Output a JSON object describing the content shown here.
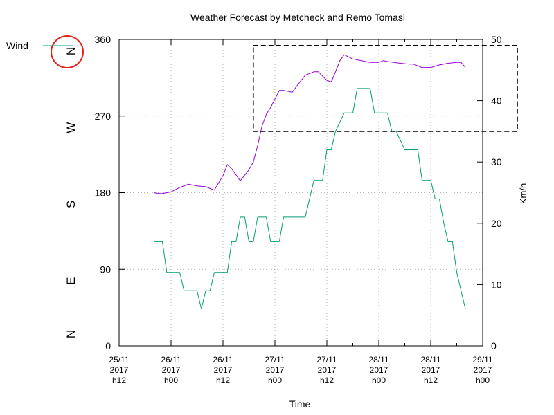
{
  "chart_data": {
    "type": "line",
    "title": "Weather Forecast by Metcheck and Remo Tomasi",
    "xlabel": "Time",
    "ylabel": "",
    "y2label": "Km/h",
    "ylim": [
      0,
      360
    ],
    "y2lim": [
      0,
      50
    ],
    "grid": true,
    "legend": {
      "label": "Wind",
      "position": "top-left"
    },
    "compass_labels": [
      {
        "label": "N",
        "deg": 0
      },
      {
        "label": "E",
        "deg": 90
      },
      {
        "label": "S",
        "deg": 180
      },
      {
        "label": "W",
        "deg": 270
      },
      {
        "label": "N",
        "deg": 360,
        "highlighted": true
      }
    ],
    "y_ticks": [
      0,
      90,
      180,
      270,
      360
    ],
    "y2_ticks": [
      0,
      10,
      20,
      30,
      40,
      50
    ],
    "x_domain": [
      0,
      84
    ],
    "x_ticks": [
      {
        "t": 0,
        "lines": [
          "25/11",
          "2017",
          "h12"
        ]
      },
      {
        "t": 12,
        "lines": [
          "26/11",
          "2017",
          "h00"
        ]
      },
      {
        "t": 24,
        "lines": [
          "26/11",
          "2017",
          "h12"
        ]
      },
      {
        "t": 36,
        "lines": [
          "27/11",
          "2017",
          "h00"
        ]
      },
      {
        "t": 48,
        "lines": [
          "27/11",
          "2017",
          "h12"
        ]
      },
      {
        "t": 60,
        "lines": [
          "28/11",
          "2017",
          "h00"
        ]
      },
      {
        "t": 72,
        "lines": [
          "28/11",
          "2017",
          "h12"
        ]
      },
      {
        "t": 84,
        "lines": [
          "29/11",
          "2017",
          "h00"
        ]
      }
    ],
    "minor_grid_x": [
      6,
      18,
      30,
      42,
      54,
      66,
      78
    ],
    "series": [
      {
        "name": "Wind",
        "axis": "y2",
        "color": "#009e73",
        "points": [
          [
            8,
            17
          ],
          [
            10,
            17
          ],
          [
            11,
            12
          ],
          [
            14,
            12
          ],
          [
            15,
            9
          ],
          [
            18,
            9
          ],
          [
            19,
            6
          ],
          [
            20,
            9
          ],
          [
            21,
            9
          ],
          [
            22,
            12
          ],
          [
            25,
            12
          ],
          [
            26,
            17
          ],
          [
            27,
            17
          ],
          [
            28,
            21
          ],
          [
            29,
            21
          ],
          [
            30,
            17
          ],
          [
            31,
            17
          ],
          [
            32,
            21
          ],
          [
            34,
            21
          ],
          [
            35,
            17
          ],
          [
            37,
            17
          ],
          [
            38,
            21
          ],
          [
            43,
            21
          ],
          [
            45,
            27
          ],
          [
            47,
            27
          ],
          [
            48,
            32
          ],
          [
            49,
            32
          ],
          [
            50,
            35
          ],
          [
            52,
            38
          ],
          [
            54,
            38
          ],
          [
            55,
            42
          ],
          [
            58,
            42
          ],
          [
            59,
            38
          ],
          [
            62,
            38
          ],
          [
            63,
            35
          ],
          [
            64,
            35
          ],
          [
            66,
            32
          ],
          [
            69,
            32
          ],
          [
            70,
            27
          ],
          [
            72,
            27
          ],
          [
            73,
            24
          ],
          [
            74,
            24
          ],
          [
            75,
            20
          ],
          [
            76,
            17
          ],
          [
            77,
            17
          ],
          [
            78,
            12
          ],
          [
            80,
            6
          ]
        ]
      },
      {
        "name": "",
        "axis": "y1",
        "color": "#9400d3",
        "points": [
          [
            8,
            180
          ],
          [
            9,
            179
          ],
          [
            10,
            179
          ],
          [
            11,
            180
          ],
          [
            12,
            181
          ],
          [
            14,
            186
          ],
          [
            16,
            190
          ],
          [
            18,
            188
          ],
          [
            20,
            187
          ],
          [
            22,
            183
          ],
          [
            24,
            200
          ],
          [
            25,
            213
          ],
          [
            26,
            208
          ],
          [
            28,
            194
          ],
          [
            30,
            207
          ],
          [
            31,
            216
          ],
          [
            32,
            235
          ],
          [
            33,
            258
          ],
          [
            34,
            272
          ],
          [
            35,
            280
          ],
          [
            36,
            290
          ],
          [
            37,
            300
          ],
          [
            38,
            300
          ],
          [
            40,
            298
          ],
          [
            41,
            305
          ],
          [
            43,
            318
          ],
          [
            45,
            322
          ],
          [
            46,
            322
          ],
          [
            48,
            312
          ],
          [
            49,
            310
          ],
          [
            50,
            322
          ],
          [
            51,
            335
          ],
          [
            52,
            342
          ],
          [
            54,
            337
          ],
          [
            56,
            335
          ],
          [
            58,
            333
          ],
          [
            60,
            333
          ],
          [
            61,
            335
          ],
          [
            62,
            334
          ],
          [
            65,
            332
          ],
          [
            67,
            331
          ],
          [
            68,
            331
          ],
          [
            70,
            327
          ],
          [
            72,
            327
          ],
          [
            74,
            330
          ],
          [
            76,
            332
          ],
          [
            78,
            333
          ],
          [
            79,
            333
          ],
          [
            80,
            327
          ]
        ]
      }
    ],
    "annotation_box": {
      "t0": 31,
      "t1": 92,
      "y2_top": 49,
      "y2_bottom": 35,
      "style": "dashed"
    }
  }
}
